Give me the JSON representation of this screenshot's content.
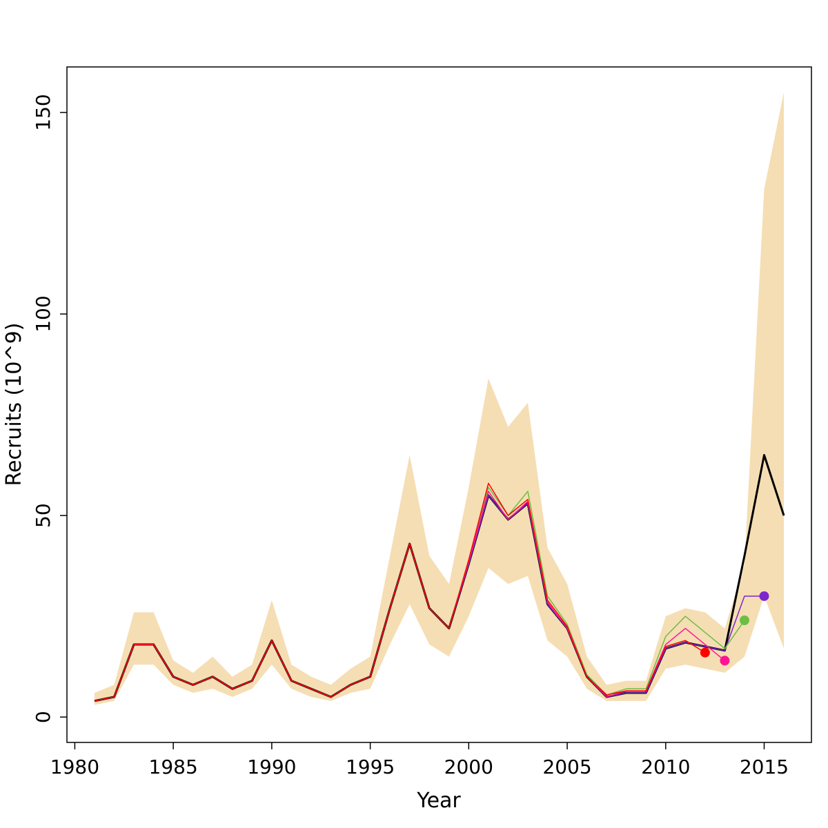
{
  "chart_data": {
    "type": "line",
    "title": "",
    "xlabel": "Year",
    "ylabel": "Recruits (10^9)",
    "x_ticks": [
      1980,
      1985,
      1990,
      1995,
      2000,
      2005,
      2010,
      2015
    ],
    "y_ticks": [
      0,
      50,
      100,
      150
    ],
    "x_range": [
      1979.6,
      2017.4
    ],
    "y_range": [
      -6.3,
      161.3
    ],
    "grid": "off",
    "legend": "none",
    "years": [
      1981,
      1982,
      1983,
      1984,
      1985,
      1986,
      1987,
      1988,
      1989,
      1990,
      1991,
      1992,
      1993,
      1994,
      1995,
      1996,
      1997,
      1998,
      1999,
      2000,
      2001,
      2002,
      2003,
      2004,
      2005,
      2006,
      2007,
      2008,
      2009,
      2010,
      2011,
      2012,
      2013,
      2014,
      2015,
      2016
    ],
    "band": {
      "name": "confidence-interval",
      "color": "#F5DEB3",
      "lower": [
        3,
        4,
        13,
        13,
        8,
        6,
        7,
        5,
        7,
        13,
        7,
        5,
        4,
        6,
        7,
        18,
        28,
        18,
        15,
        25,
        37,
        33,
        35,
        19,
        15,
        7,
        4,
        4,
        4,
        12,
        13,
        12,
        11,
        15,
        30,
        17
      ],
      "upper": [
        6,
        8,
        26,
        26,
        14,
        11,
        15,
        10,
        13,
        29,
        13,
        10,
        8,
        12,
        15,
        40,
        65,
        40,
        33,
        57,
        84,
        72,
        78,
        42,
        33,
        15,
        8,
        9,
        9,
        25,
        27,
        26,
        22,
        38,
        131,
        155
      ]
    },
    "series": [
      {
        "name": "base-run",
        "color": "#000000",
        "width": 3,
        "dot": false,
        "values": [
          4,
          5,
          18,
          18,
          10,
          8,
          10,
          7,
          9,
          19,
          9,
          7,
          5,
          8,
          10,
          27,
          43,
          27,
          22,
          38,
          55,
          49,
          53,
          28,
          22,
          10,
          5,
          6,
          6,
          17,
          18.5,
          17.5,
          16.5,
          40,
          65,
          50
        ]
      },
      {
        "name": "retro-peel-2015",
        "color": "#7D26CD",
        "width": 1.5,
        "dot": true,
        "values": [
          4,
          5,
          18,
          18,
          10,
          8,
          10,
          7,
          9,
          19,
          9,
          7,
          5,
          8,
          10,
          27,
          43,
          27,
          22,
          38,
          55,
          49,
          53,
          28,
          22,
          10,
          5,
          6,
          6,
          17,
          18.5,
          17.5,
          16.5,
          30,
          30
        ]
      },
      {
        "name": "retro-peel-2014",
        "color": "#6BBE45",
        "width": 1.5,
        "dot": true,
        "values": [
          4,
          5,
          18,
          18,
          10,
          8,
          10,
          7,
          9,
          19,
          9,
          7,
          5,
          8,
          10,
          27,
          43,
          27,
          22,
          39,
          57,
          50,
          56,
          30,
          23,
          10.5,
          5.5,
          7,
          7,
          20,
          25,
          21,
          17,
          24
        ]
      },
      {
        "name": "retro-peel-2013",
        "color": "#FF1493",
        "width": 1.5,
        "dot": true,
        "values": [
          4,
          5,
          18,
          18,
          10,
          8,
          10,
          7,
          9,
          19,
          9,
          7,
          5,
          8,
          10,
          27,
          43,
          27,
          22,
          38.5,
          56,
          49,
          53.5,
          28.5,
          22,
          10,
          5,
          6.5,
          6.5,
          18,
          22,
          18,
          14
        ]
      },
      {
        "name": "retro-peel-2012",
        "color": "#FF0000",
        "width": 1.5,
        "dot": true,
        "values": [
          4,
          5,
          18,
          18,
          10,
          8,
          10,
          7,
          9,
          19,
          9,
          7,
          5,
          8,
          10,
          27,
          43,
          27,
          22,
          39,
          58,
          50,
          54,
          29,
          22.5,
          10,
          5.5,
          6.5,
          6.5,
          17.5,
          19,
          16
        ]
      }
    ]
  }
}
